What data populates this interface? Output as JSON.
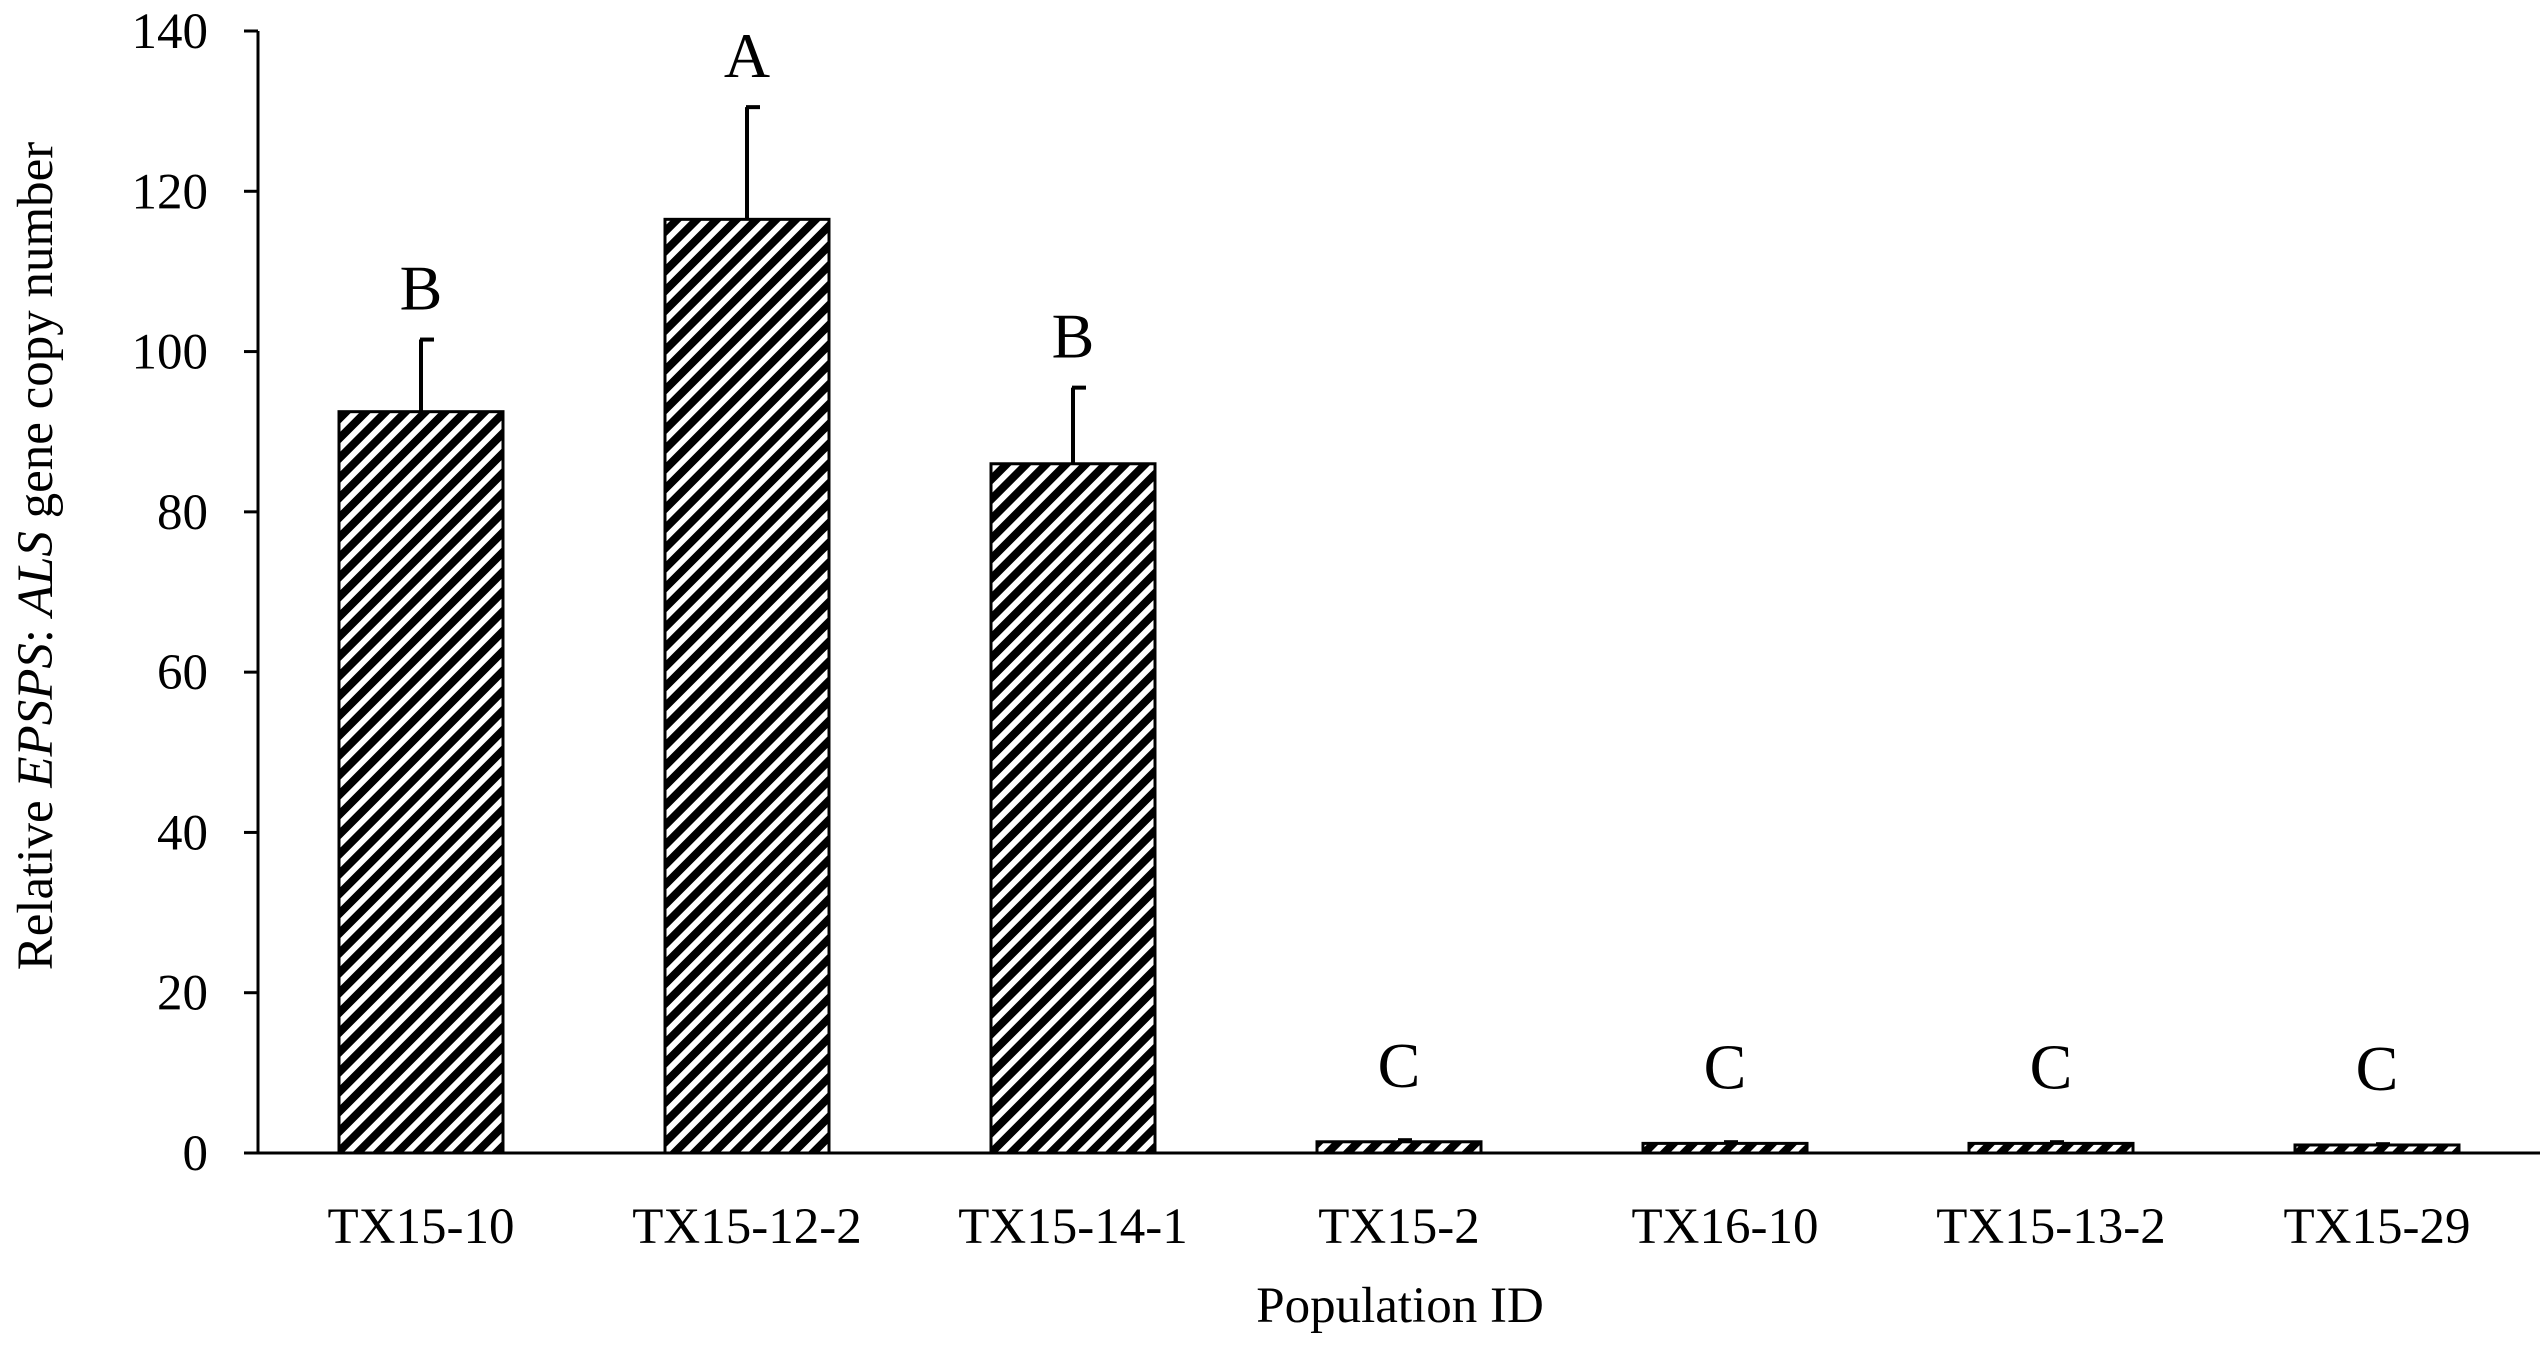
{
  "chart_data": {
    "type": "bar",
    "xlabel": "Population ID",
    "ylabel": {
      "prefix": "Relative ",
      "gene1": "EPSPS",
      "sep": ": ",
      "gene2": "ALS",
      "suffix": " gene copy number"
    },
    "ylim": [
      0,
      140
    ],
    "yticks": [
      0,
      20,
      40,
      60,
      80,
      100,
      120,
      140
    ],
    "grid": false,
    "legend": "none",
    "bar_pattern": "diagonal-hatch",
    "categories": [
      "TX15-10",
      "TX15-12-2",
      "TX15-14-1",
      "TX15-2",
      "TX16-10",
      "TX15-13-2",
      "TX15-29"
    ],
    "values": [
      92.5,
      116.5,
      86,
      1.4,
      1.2,
      1.2,
      1.0
    ],
    "errors": [
      9,
      14,
      9.5,
      0.2,
      0.15,
      0.15,
      0.1
    ],
    "significance_letters": [
      "B",
      "A",
      "B",
      "C",
      "C",
      "C",
      "C"
    ]
  }
}
